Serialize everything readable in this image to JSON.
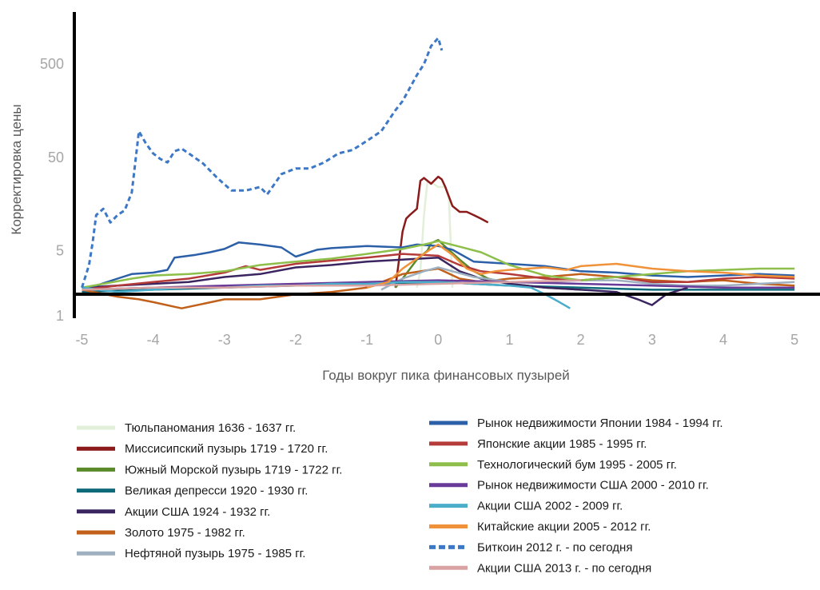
{
  "chart_data": {
    "type": "line",
    "title": "",
    "xlabel": "Годы вокруг пика финансовых пузырей",
    "ylabel": "Корректировка цены",
    "y_scale": "log",
    "xlim": [
      -5,
      5.3
    ],
    "ylim": [
      1,
      1500
    ],
    "x_ticks": [
      "-5",
      "-4",
      "-3",
      "-2",
      "-1",
      "0",
      "1",
      "2",
      "3",
      "4",
      "5"
    ],
    "y_ticks": [
      "1",
      "5",
      "50",
      "500"
    ],
    "grid": false,
    "legend_position": "bottom",
    "series": [
      {
        "name": "Тюльпаномания 1636 - 1637 гг.",
        "color": "#e2efd9",
        "dash": false,
        "points": [
          [
            -0.3,
            2
          ],
          [
            -0.25,
            3
          ],
          [
            -0.2,
            12
          ],
          [
            -0.15,
            28
          ],
          [
            -0.1,
            27
          ],
          [
            0,
            24
          ],
          [
            0.1,
            24
          ],
          [
            0.15,
            18
          ],
          [
            0.2,
            2
          ]
        ]
      },
      {
        "name": "Миссисипский пузырь 1719 - 1720 гг.",
        "color": "#8b1a1a",
        "dash": false,
        "points": [
          [
            -0.6,
            2
          ],
          [
            -0.55,
            4
          ],
          [
            -0.5,
            8
          ],
          [
            -0.45,
            11
          ],
          [
            -0.4,
            12
          ],
          [
            -0.3,
            14
          ],
          [
            -0.25,
            28
          ],
          [
            -0.2,
            30
          ],
          [
            -0.1,
            26
          ],
          [
            0,
            31
          ],
          [
            0.05,
            29
          ],
          [
            0.1,
            24
          ],
          [
            0.2,
            15
          ],
          [
            0.3,
            13
          ],
          [
            0.4,
            13
          ],
          [
            0.5,
            12
          ],
          [
            0.6,
            11
          ],
          [
            0.7,
            10
          ]
        ]
      },
      {
        "name": "Южный Морской пузырь 1719 - 1722 гг.",
        "color": "#5a8a2a",
        "dash": false,
        "points": [
          [
            -0.6,
            2
          ],
          [
            -0.5,
            2.5
          ],
          [
            -0.3,
            4
          ],
          [
            -0.15,
            5
          ],
          [
            -0.1,
            6
          ],
          [
            0,
            6.5
          ],
          [
            0.1,
            5.5
          ],
          [
            0.3,
            4
          ],
          [
            0.5,
            3
          ],
          [
            0.7,
            2.5
          ],
          [
            1,
            2.2
          ],
          [
            1.5,
            2
          ],
          [
            2,
            1.9
          ]
        ]
      },
      {
        "name": "Великая депресси 1920 - 1930 гг.",
        "color": "#0e6a7a",
        "dash": false,
        "points": [
          [
            -5,
            1.8
          ],
          [
            -4,
            1.9
          ],
          [
            -3,
            2
          ],
          [
            -2,
            2.1
          ],
          [
            -1,
            2.2
          ],
          [
            0,
            2.3
          ],
          [
            1,
            2.1
          ],
          [
            2,
            2
          ],
          [
            3,
            1.9
          ],
          [
            4,
            1.9
          ],
          [
            5,
            1.9
          ]
        ]
      },
      {
        "name": "Акции США 1924 - 1932 гг.",
        "color": "#3a2560",
        "dash": false,
        "points": [
          [
            -5,
            2
          ],
          [
            -4.5,
            2.1
          ],
          [
            -4,
            2.2
          ],
          [
            -3.5,
            2.3
          ],
          [
            -3,
            2.6
          ],
          [
            -2.5,
            2.8
          ],
          [
            -2,
            3.3
          ],
          [
            -1.5,
            3.5
          ],
          [
            -1,
            3.8
          ],
          [
            -0.5,
            4
          ],
          [
            0,
            4.2
          ],
          [
            0.3,
            3
          ],
          [
            0.6,
            2.5
          ],
          [
            1,
            2.2
          ],
          [
            1.5,
            2
          ],
          [
            2,
            1.9
          ],
          [
            2.5,
            1.8
          ],
          [
            2.8,
            1.5
          ],
          [
            3,
            1.3
          ],
          [
            3.2,
            1.7
          ],
          [
            3.5,
            2
          ]
        ]
      },
      {
        "name": "Золото 1975 - 1982 гг.",
        "color": "#c0601a",
        "dash": false,
        "points": [
          [
            -5,
            1.9
          ],
          [
            -4.5,
            1.6
          ],
          [
            -4.2,
            1.5
          ],
          [
            -4,
            1.4
          ],
          [
            -3.6,
            1.2
          ],
          [
            -3,
            1.5
          ],
          [
            -2.5,
            1.5
          ],
          [
            -2,
            1.7
          ],
          [
            -1.5,
            1.8
          ],
          [
            -1,
            2
          ],
          [
            -0.5,
            2.8
          ],
          [
            0,
            3.2
          ],
          [
            0.3,
            2.5
          ],
          [
            0.6,
            2.3
          ],
          [
            1,
            2.5
          ],
          [
            1.5,
            2.6
          ],
          [
            2,
            2.8
          ],
          [
            2.5,
            2.6
          ],
          [
            3,
            2.4
          ],
          [
            3.5,
            2.3
          ],
          [
            4,
            2.4
          ],
          [
            4.5,
            2.2
          ],
          [
            5,
            2.1
          ]
        ]
      },
      {
        "name": "Нефтяной пузырь 1975 - 1985 гг.",
        "color": "#9eb0c0",
        "dash": false,
        "points": [
          [
            -0.8,
            1.9
          ],
          [
            -0.5,
            2.5
          ],
          [
            -0.2,
            3
          ],
          [
            0,
            3.3
          ],
          [
            0.2,
            3
          ],
          [
            0.5,
            2.6
          ],
          [
            1,
            2.3
          ],
          [
            1.5,
            2.3
          ],
          [
            2,
            2.4
          ],
          [
            2.5,
            2.4
          ],
          [
            3,
            2.2
          ],
          [
            3.5,
            2.1
          ],
          [
            4,
            2.1
          ],
          [
            4.5,
            2.2
          ],
          [
            5,
            2.3
          ]
        ]
      },
      {
        "name": "Рынок недвижимости Японии 1984 - 1994 гг.",
        "color": "#2b5fa8",
        "dash": false,
        "points": [
          [
            -5,
            2
          ],
          [
            -4.8,
            2.1
          ],
          [
            -4.5,
            2.5
          ],
          [
            -4.3,
            2.8
          ],
          [
            -4,
            2.9
          ],
          [
            -3.8,
            3.1
          ],
          [
            -3.7,
            4.2
          ],
          [
            -3.4,
            4.5
          ],
          [
            -3.2,
            4.8
          ],
          [
            -3,
            5.2
          ],
          [
            -2.8,
            6.1
          ],
          [
            -2.5,
            5.8
          ],
          [
            -2.2,
            5.4
          ],
          [
            -2,
            4.3
          ],
          [
            -1.7,
            5.1
          ],
          [
            -1.5,
            5.3
          ],
          [
            -1,
            5.6
          ],
          [
            -0.5,
            5.4
          ],
          [
            -0.3,
            5.8
          ],
          [
            0,
            5.6
          ],
          [
            0.2,
            5.1
          ],
          [
            0.5,
            3.8
          ],
          [
            1,
            3.6
          ],
          [
            1.5,
            3.4
          ],
          [
            2,
            3
          ],
          [
            2.5,
            2.9
          ],
          [
            3,
            2.7
          ],
          [
            3.5,
            2.6
          ],
          [
            4,
            2.7
          ],
          [
            4.5,
            2.8
          ],
          [
            5,
            2.7
          ]
        ]
      },
      {
        "name": "Японские акции 1985 - 1995 гг.",
        "color": "#b53a3a",
        "dash": false,
        "points": [
          [
            -5,
            1.9
          ],
          [
            -4.5,
            2.1
          ],
          [
            -4,
            2.3
          ],
          [
            -3.5,
            2.5
          ],
          [
            -3,
            2.9
          ],
          [
            -2.7,
            3.4
          ],
          [
            -2.5,
            3.1
          ],
          [
            -2,
            3.6
          ],
          [
            -1.5,
            3.9
          ],
          [
            -1,
            4.2
          ],
          [
            -0.5,
            4.6
          ],
          [
            0,
            4.4
          ],
          [
            0.3,
            3.5
          ],
          [
            0.6,
            3
          ],
          [
            1,
            2.8
          ],
          [
            1.5,
            2.5
          ],
          [
            2,
            2.4
          ],
          [
            2.5,
            2.6
          ],
          [
            3,
            2.3
          ],
          [
            3.5,
            2.3
          ],
          [
            4,
            2.5
          ],
          [
            4.5,
            2.6
          ],
          [
            5,
            2.5
          ]
        ]
      },
      {
        "name": "Технологический бум 1995 - 2005 гг.",
        "color": "#8dbf4a",
        "dash": false,
        "points": [
          [
            -5,
            2
          ],
          [
            -4.7,
            2.2
          ],
          [
            -4.3,
            2.5
          ],
          [
            -4,
            2.7
          ],
          [
            -3.5,
            2.8
          ],
          [
            -3,
            3
          ],
          [
            -2.5,
            3.5
          ],
          [
            -2,
            3.8
          ],
          [
            -1.5,
            4.1
          ],
          [
            -1,
            4.6
          ],
          [
            -0.5,
            5.2
          ],
          [
            -0.2,
            5.8
          ],
          [
            0,
            6.3
          ],
          [
            0.3,
            5.5
          ],
          [
            0.6,
            4.8
          ],
          [
            1,
            3.5
          ],
          [
            1.5,
            2.7
          ],
          [
            2,
            2.4
          ],
          [
            2.5,
            2.6
          ],
          [
            3,
            2.8
          ],
          [
            3.5,
            3
          ],
          [
            4,
            3.1
          ],
          [
            4.5,
            3.2
          ],
          [
            5,
            3.2
          ]
        ]
      },
      {
        "name": "Рынок недвижимости США 2000 - 2010 гг.",
        "color": "#6a3a9a",
        "dash": false,
        "points": [
          [
            -5,
            1.9
          ],
          [
            -4,
            2
          ],
          [
            -3,
            2.1
          ],
          [
            -2,
            2.2
          ],
          [
            -1,
            2.3
          ],
          [
            0,
            2.4
          ],
          [
            1,
            2.3
          ],
          [
            2,
            2.2
          ],
          [
            3,
            2.1
          ],
          [
            4,
            2
          ],
          [
            5,
            2
          ]
        ]
      },
      {
        "name": "Акции США 2002 - 2009 гг.",
        "color": "#4aaecb",
        "dash": false,
        "points": [
          [
            -5,
            2
          ],
          [
            -4.5,
            1.8
          ],
          [
            -4,
            1.9
          ],
          [
            -3.5,
            2
          ],
          [
            -3,
            2
          ],
          [
            -2.5,
            2.1
          ],
          [
            -2,
            2.1
          ],
          [
            -1.5,
            2.2
          ],
          [
            -1,
            2.2
          ],
          [
            -0.5,
            2.3
          ],
          [
            0,
            2.3
          ],
          [
            0.5,
            2.2
          ],
          [
            1,
            2.1
          ],
          [
            1.3,
            2
          ],
          [
            1.5,
            1.7
          ],
          [
            1.7,
            1.4
          ],
          [
            1.85,
            1.2
          ]
        ]
      },
      {
        "name": "Китайские акции 2005 - 2012 гг.",
        "color": "#f0923a",
        "dash": false,
        "points": [
          [
            -1,
            2
          ],
          [
            -0.7,
            2.3
          ],
          [
            -0.5,
            3.2
          ],
          [
            -0.3,
            4.1
          ],
          [
            -0.1,
            5.2
          ],
          [
            0,
            5.8
          ],
          [
            0.2,
            4.5
          ],
          [
            0.4,
            3.2
          ],
          [
            0.6,
            2.8
          ],
          [
            0.8,
            3
          ],
          [
            1,
            3.1
          ],
          [
            1.5,
            3.3
          ],
          [
            1.8,
            3.1
          ],
          [
            2,
            3.4
          ],
          [
            2.5,
            3.6
          ],
          [
            3,
            3.2
          ],
          [
            3.5,
            3
          ],
          [
            4,
            2.9
          ],
          [
            4.5,
            2.7
          ],
          [
            5,
            2.6
          ]
        ]
      },
      {
        "name": "Биткоин 2012 г. - по сегодня",
        "color": "#3d78c6",
        "dash": true,
        "points": [
          [
            -5,
            2
          ],
          [
            -4.9,
            3.5
          ],
          [
            -4.85,
            6
          ],
          [
            -4.8,
            12
          ],
          [
            -4.7,
            14
          ],
          [
            -4.6,
            10
          ],
          [
            -4.5,
            12
          ],
          [
            -4.4,
            13.5
          ],
          [
            -4.3,
            21
          ],
          [
            -4.2,
            95
          ],
          [
            -4.1,
            70
          ],
          [
            -4,
            55
          ],
          [
            -3.9,
            48
          ],
          [
            -3.8,
            44
          ],
          [
            -3.7,
            58
          ],
          [
            -3.6,
            62
          ],
          [
            -3.5,
            55
          ],
          [
            -3.3,
            43
          ],
          [
            -3.1,
            30
          ],
          [
            -2.9,
            22
          ],
          [
            -2.7,
            22
          ],
          [
            -2.5,
            24
          ],
          [
            -2.4,
            20
          ],
          [
            -2.2,
            33
          ],
          [
            -2,
            38
          ],
          [
            -1.8,
            38
          ],
          [
            -1.6,
            44
          ],
          [
            -1.4,
            55
          ],
          [
            -1.2,
            60
          ],
          [
            -1,
            75
          ],
          [
            -0.8,
            95
          ],
          [
            -0.6,
            160
          ],
          [
            -0.5,
            200
          ],
          [
            -0.3,
            380
          ],
          [
            -0.2,
            500
          ],
          [
            -0.1,
            780
          ],
          [
            0,
            950
          ],
          [
            0.05,
            700
          ]
        ]
      },
      {
        "name": "Акции США 2013 г. - по сегодня",
        "color": "#d9a3a3",
        "dash": false,
        "points": [
          [
            -5,
            1.9
          ],
          [
            -4,
            2
          ],
          [
            -3,
            2
          ],
          [
            -2,
            2.1
          ],
          [
            -1,
            2.1
          ],
          [
            0,
            2.2
          ],
          [
            1,
            2.3
          ],
          [
            2,
            2.4
          ]
        ]
      }
    ]
  }
}
